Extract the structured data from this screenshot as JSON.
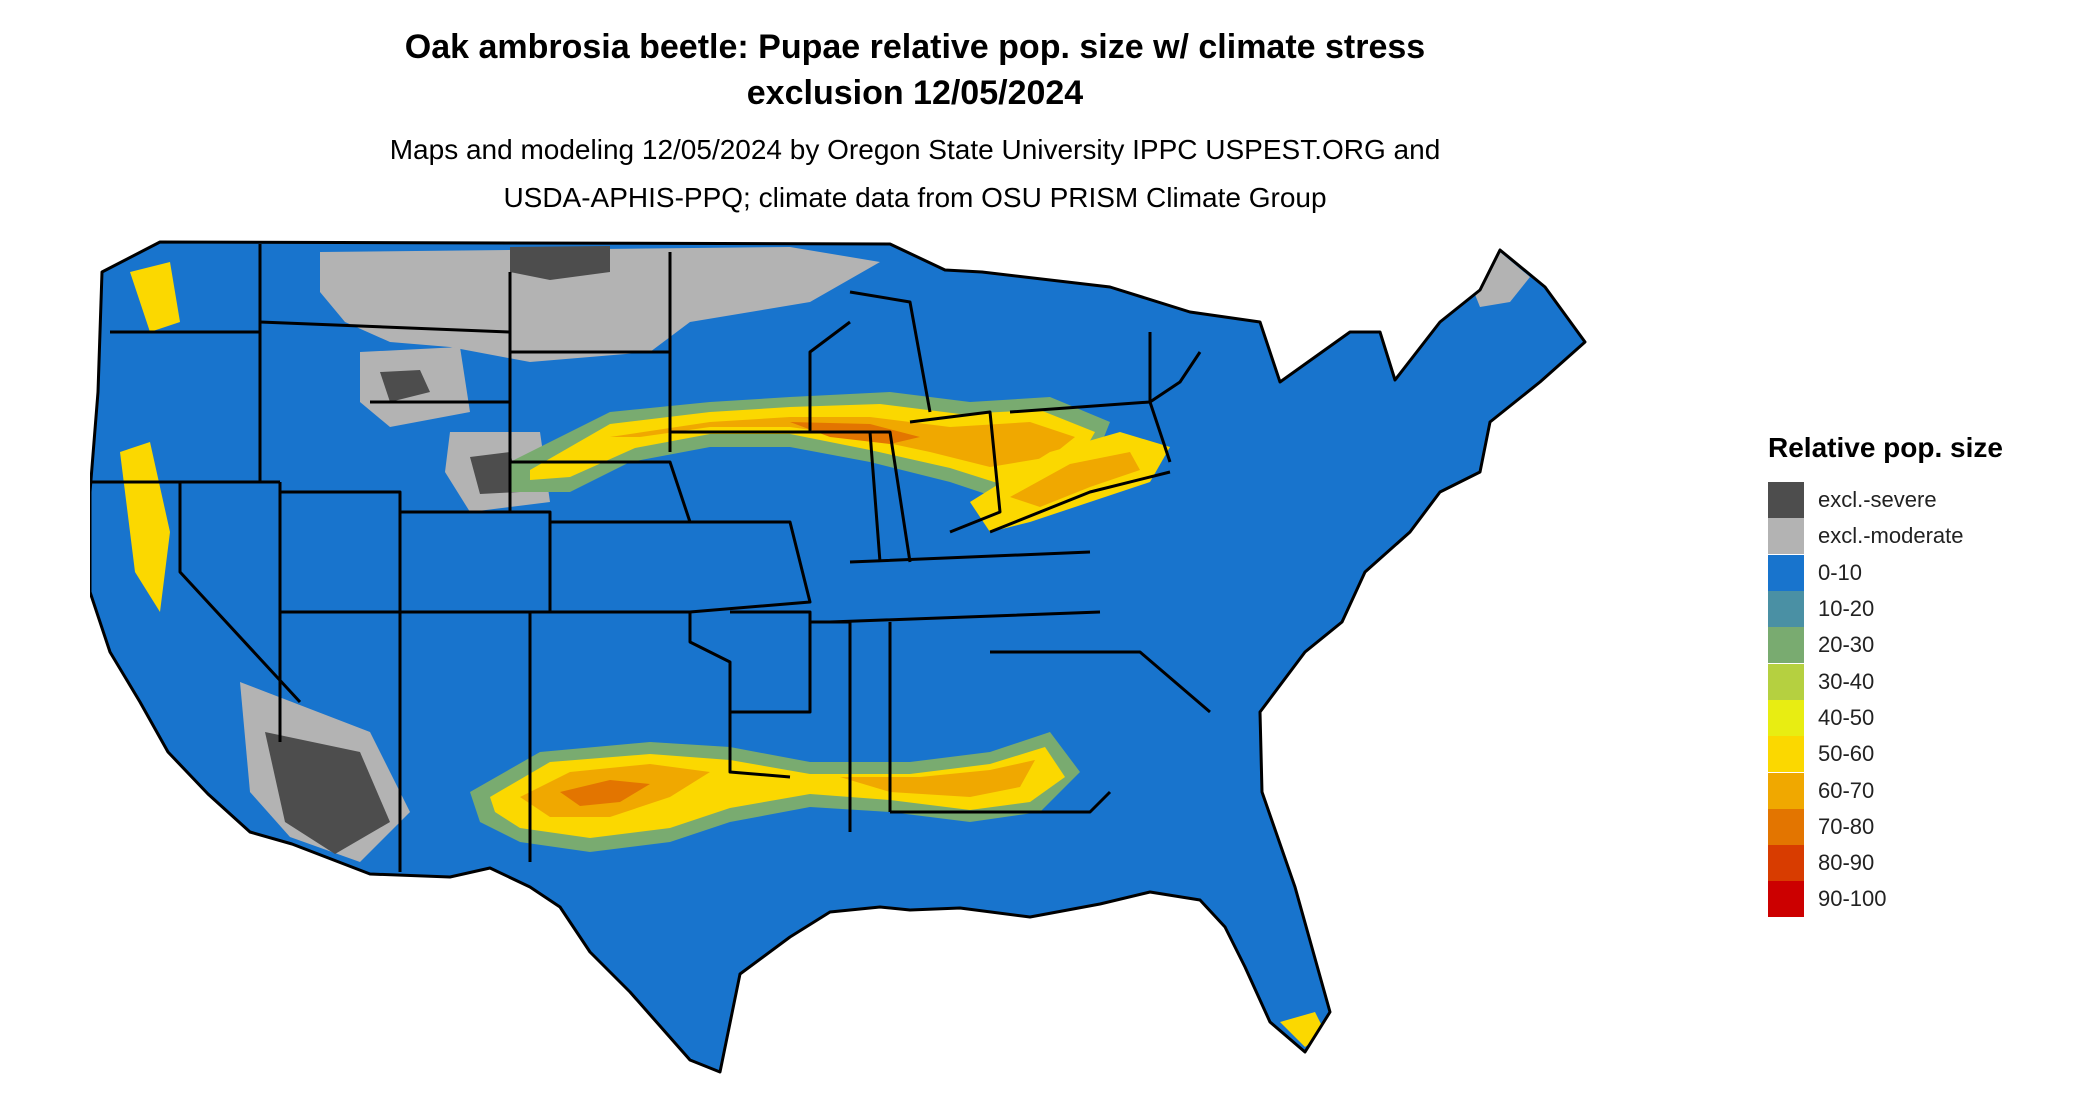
{
  "title_line1": "Oak ambrosia beetle: Pupae relative pop. size w/ climate stress",
  "title_line2": "exclusion 12/05/2024",
  "subtitle_line1": "Maps and modeling 12/05/2024 by Oregon State University IPPC USPEST.ORG and",
  "subtitle_line2": "USDA-APHIS-PPQ; climate data from OSU PRISM Climate Group",
  "legend": {
    "title": "Relative pop. size",
    "items": [
      {
        "label": "excl.-severe",
        "color": "#4d4d4d"
      },
      {
        "label": "excl.-moderate",
        "color": "#b3b3b3"
      },
      {
        "label": "0-10",
        "color": "#1874cd"
      },
      {
        "label": "10-20",
        "color": "#4a90a4"
      },
      {
        "label": "20-30",
        "color": "#79ab70"
      },
      {
        "label": "30-40",
        "color": "#b5d040"
      },
      {
        "label": "40-50",
        "color": "#e8ed12"
      },
      {
        "label": "50-60",
        "color": "#fbd800"
      },
      {
        "label": "60-70",
        "color": "#f0a800"
      },
      {
        "label": "70-80",
        "color": "#e37500"
      },
      {
        "label": "80-90",
        "color": "#d83c00"
      },
      {
        "label": "90-100",
        "color": "#cc0000"
      }
    ]
  },
  "map": {
    "region": "Conterminous United States",
    "base_color": "#1874cd",
    "border_color": "#000000"
  }
}
